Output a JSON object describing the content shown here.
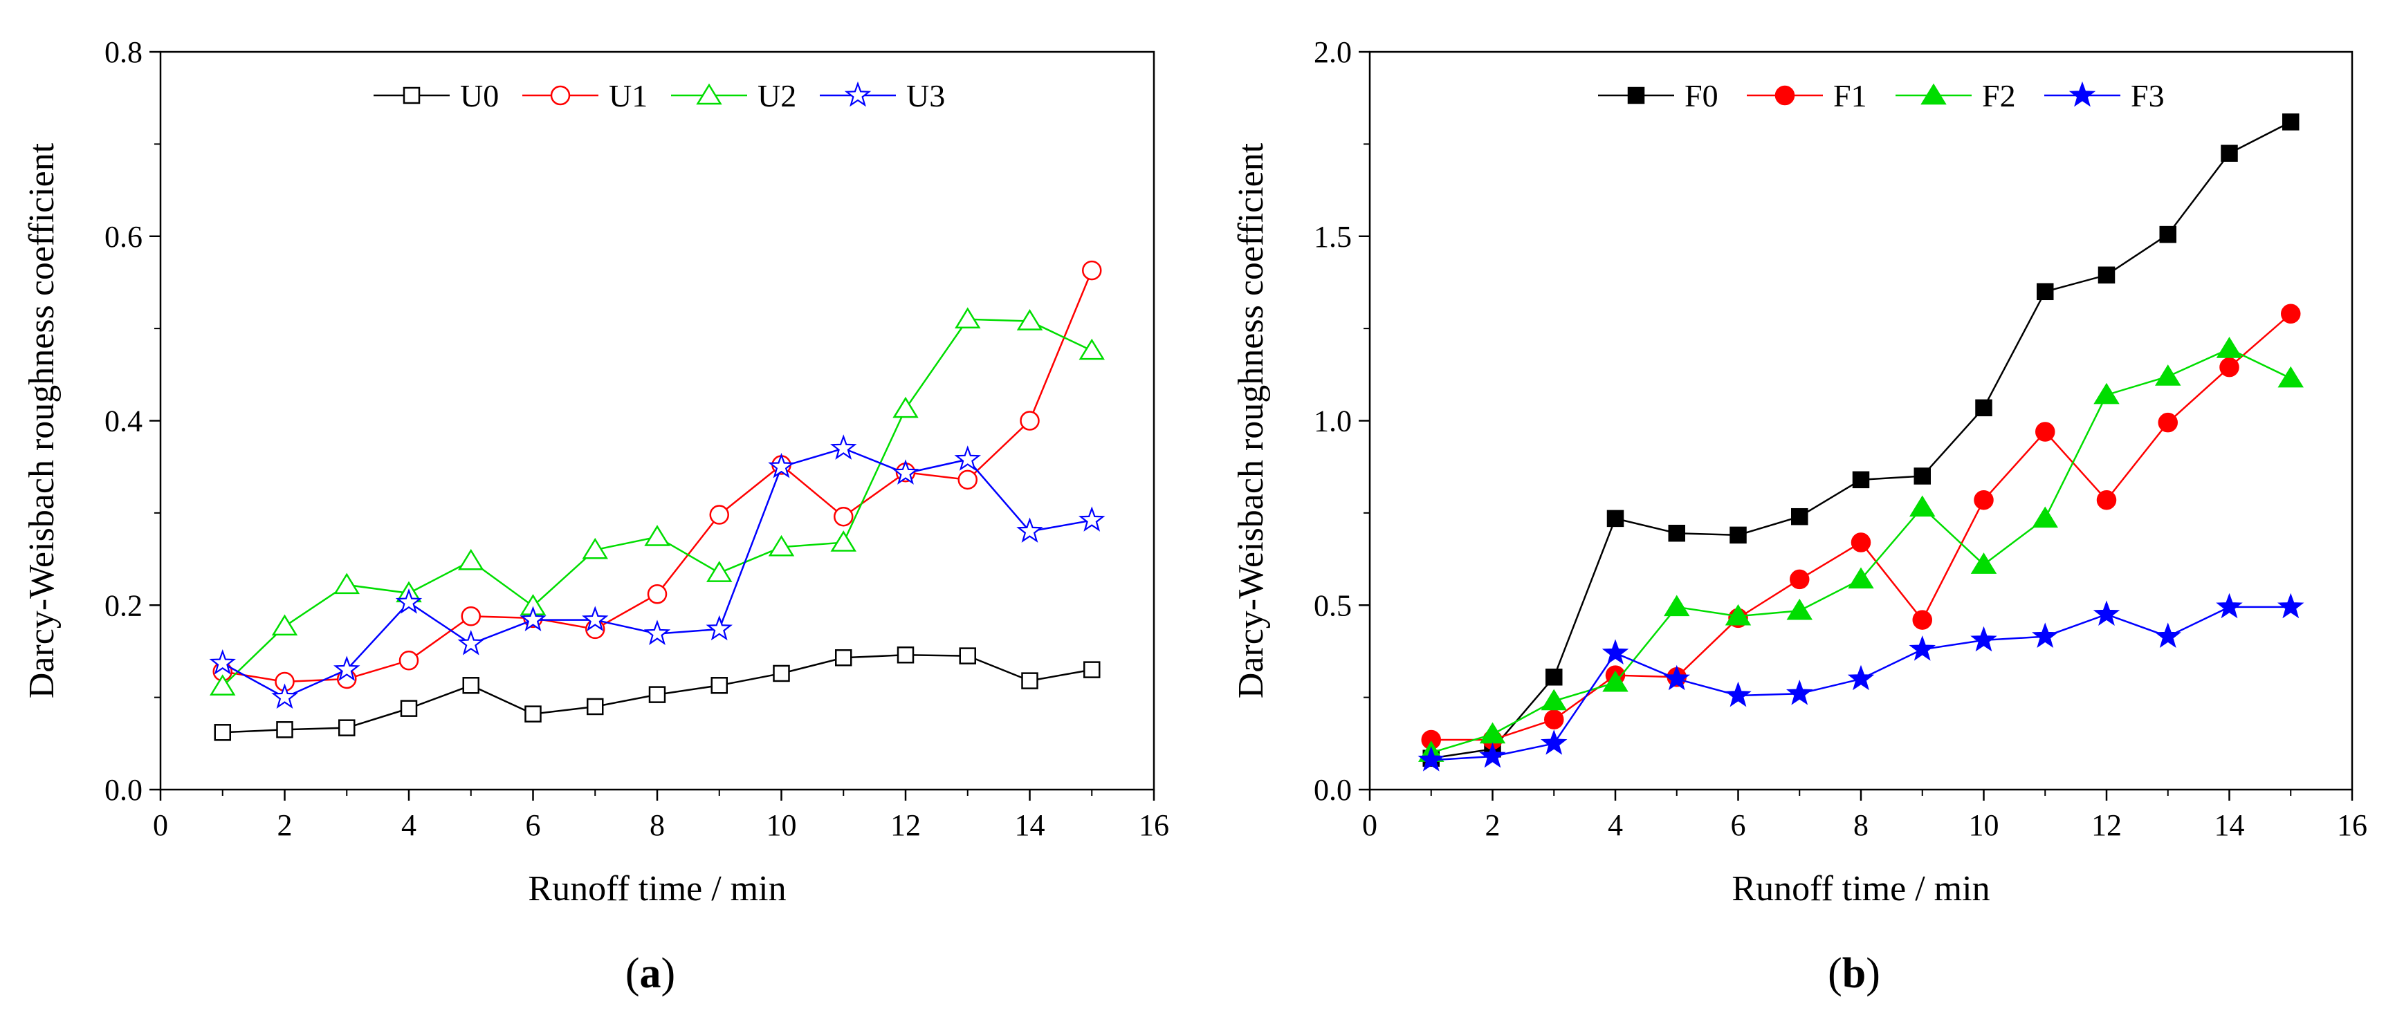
{
  "chart_data": [
    {
      "panel_label": "(a)",
      "type": "line",
      "xlabel": "Runoff time / min",
      "ylabel": "Darcy-Weisbach roughness coefficient",
      "xlim": [
        0,
        16
      ],
      "ylim": [
        0,
        0.8
      ],
      "x_ticks": [
        0,
        2,
        4,
        6,
        8,
        10,
        12,
        14,
        16
      ],
      "y_ticks": [
        0.0,
        0.2,
        0.4,
        0.6,
        0.8
      ],
      "x_tick_labels": [
        "0",
        "2",
        "4",
        "6",
        "8",
        "10",
        "12",
        "14",
        "16"
      ],
      "y_tick_labels": [
        "0.0",
        "0.2",
        "0.4",
        "0.6",
        "0.8"
      ],
      "grid": false,
      "legend_position": "top-center",
      "x": [
        1,
        2,
        3,
        4,
        5,
        6,
        7,
        8,
        9,
        10,
        11,
        12,
        13,
        14,
        15
      ],
      "series": [
        {
          "name": "U0",
          "color": "#000000",
          "marker": "square",
          "filled": false,
          "values": [
            0.062,
            0.065,
            0.067,
            0.088,
            0.113,
            0.082,
            0.09,
            0.103,
            0.113,
            0.126,
            0.143,
            0.146,
            0.145,
            0.118,
            0.13
          ]
        },
        {
          "name": "U1",
          "color": "#ff0000",
          "marker": "circle",
          "filled": false,
          "values": [
            0.128,
            0.117,
            0.12,
            0.14,
            0.188,
            0.186,
            0.174,
            0.212,
            0.298,
            0.352,
            0.296,
            0.344,
            0.336,
            0.4,
            0.563
          ]
        },
        {
          "name": "U2",
          "color": "#00dd00",
          "marker": "triangle",
          "filled": false,
          "values": [
            0.112,
            0.177,
            0.222,
            0.213,
            0.248,
            0.199,
            0.26,
            0.274,
            0.235,
            0.263,
            0.268,
            0.413,
            0.51,
            0.508,
            0.476
          ]
        },
        {
          "name": "U3",
          "color": "#0000ff",
          "marker": "star",
          "filled": false,
          "values": [
            0.137,
            0.1,
            0.13,
            0.203,
            0.158,
            0.184,
            0.184,
            0.169,
            0.174,
            0.35,
            0.37,
            0.343,
            0.358,
            0.28,
            0.292
          ]
        }
      ]
    },
    {
      "panel_label": "(b)",
      "type": "line",
      "xlabel": "Runoff time / min",
      "ylabel": "Darcy-Weisbach roughness coefficient",
      "xlim": [
        0,
        16
      ],
      "ylim": [
        0,
        2.0
      ],
      "x_ticks": [
        0,
        2,
        4,
        6,
        8,
        10,
        12,
        14,
        16
      ],
      "y_ticks": [
        0.0,
        0.5,
        1.0,
        1.5,
        2.0
      ],
      "x_tick_labels": [
        "0",
        "2",
        "4",
        "6",
        "8",
        "10",
        "12",
        "14",
        "16"
      ],
      "y_tick_labels": [
        "0.0",
        "0.5",
        "1.0",
        "1.5",
        "2.0"
      ],
      "grid": false,
      "legend_position": "top-center",
      "x": [
        1,
        2,
        3,
        4,
        5,
        6,
        7,
        8,
        9,
        10,
        11,
        12,
        13,
        14,
        15
      ],
      "series": [
        {
          "name": "F0",
          "color": "#000000",
          "marker": "square",
          "filled": true,
          "values": [
            0.085,
            0.11,
            0.305,
            0.735,
            0.695,
            0.69,
            0.74,
            0.84,
            0.85,
            1.035,
            1.35,
            1.395,
            1.505,
            1.725,
            1.81
          ]
        },
        {
          "name": "F1",
          "color": "#ff0000",
          "marker": "circle",
          "filled": true,
          "values": [
            0.135,
            0.135,
            0.19,
            0.31,
            0.305,
            0.465,
            0.57,
            0.67,
            0.46,
            0.785,
            0.97,
            0.785,
            0.995,
            1.145,
            1.29
          ]
        },
        {
          "name": "F2",
          "color": "#00dd00",
          "marker": "triangle",
          "filled": true,
          "values": [
            0.1,
            0.15,
            0.24,
            0.29,
            0.495,
            0.47,
            0.485,
            0.57,
            0.765,
            0.61,
            0.735,
            1.07,
            1.12,
            1.195,
            1.115
          ]
        },
        {
          "name": "F3",
          "color": "#0000ff",
          "marker": "star",
          "filled": true,
          "values": [
            0.08,
            0.09,
            0.125,
            0.37,
            0.3,
            0.255,
            0.26,
            0.3,
            0.38,
            0.405,
            0.415,
            0.475,
            0.415,
            0.495,
            0.495
          ]
        }
      ]
    }
  ]
}
